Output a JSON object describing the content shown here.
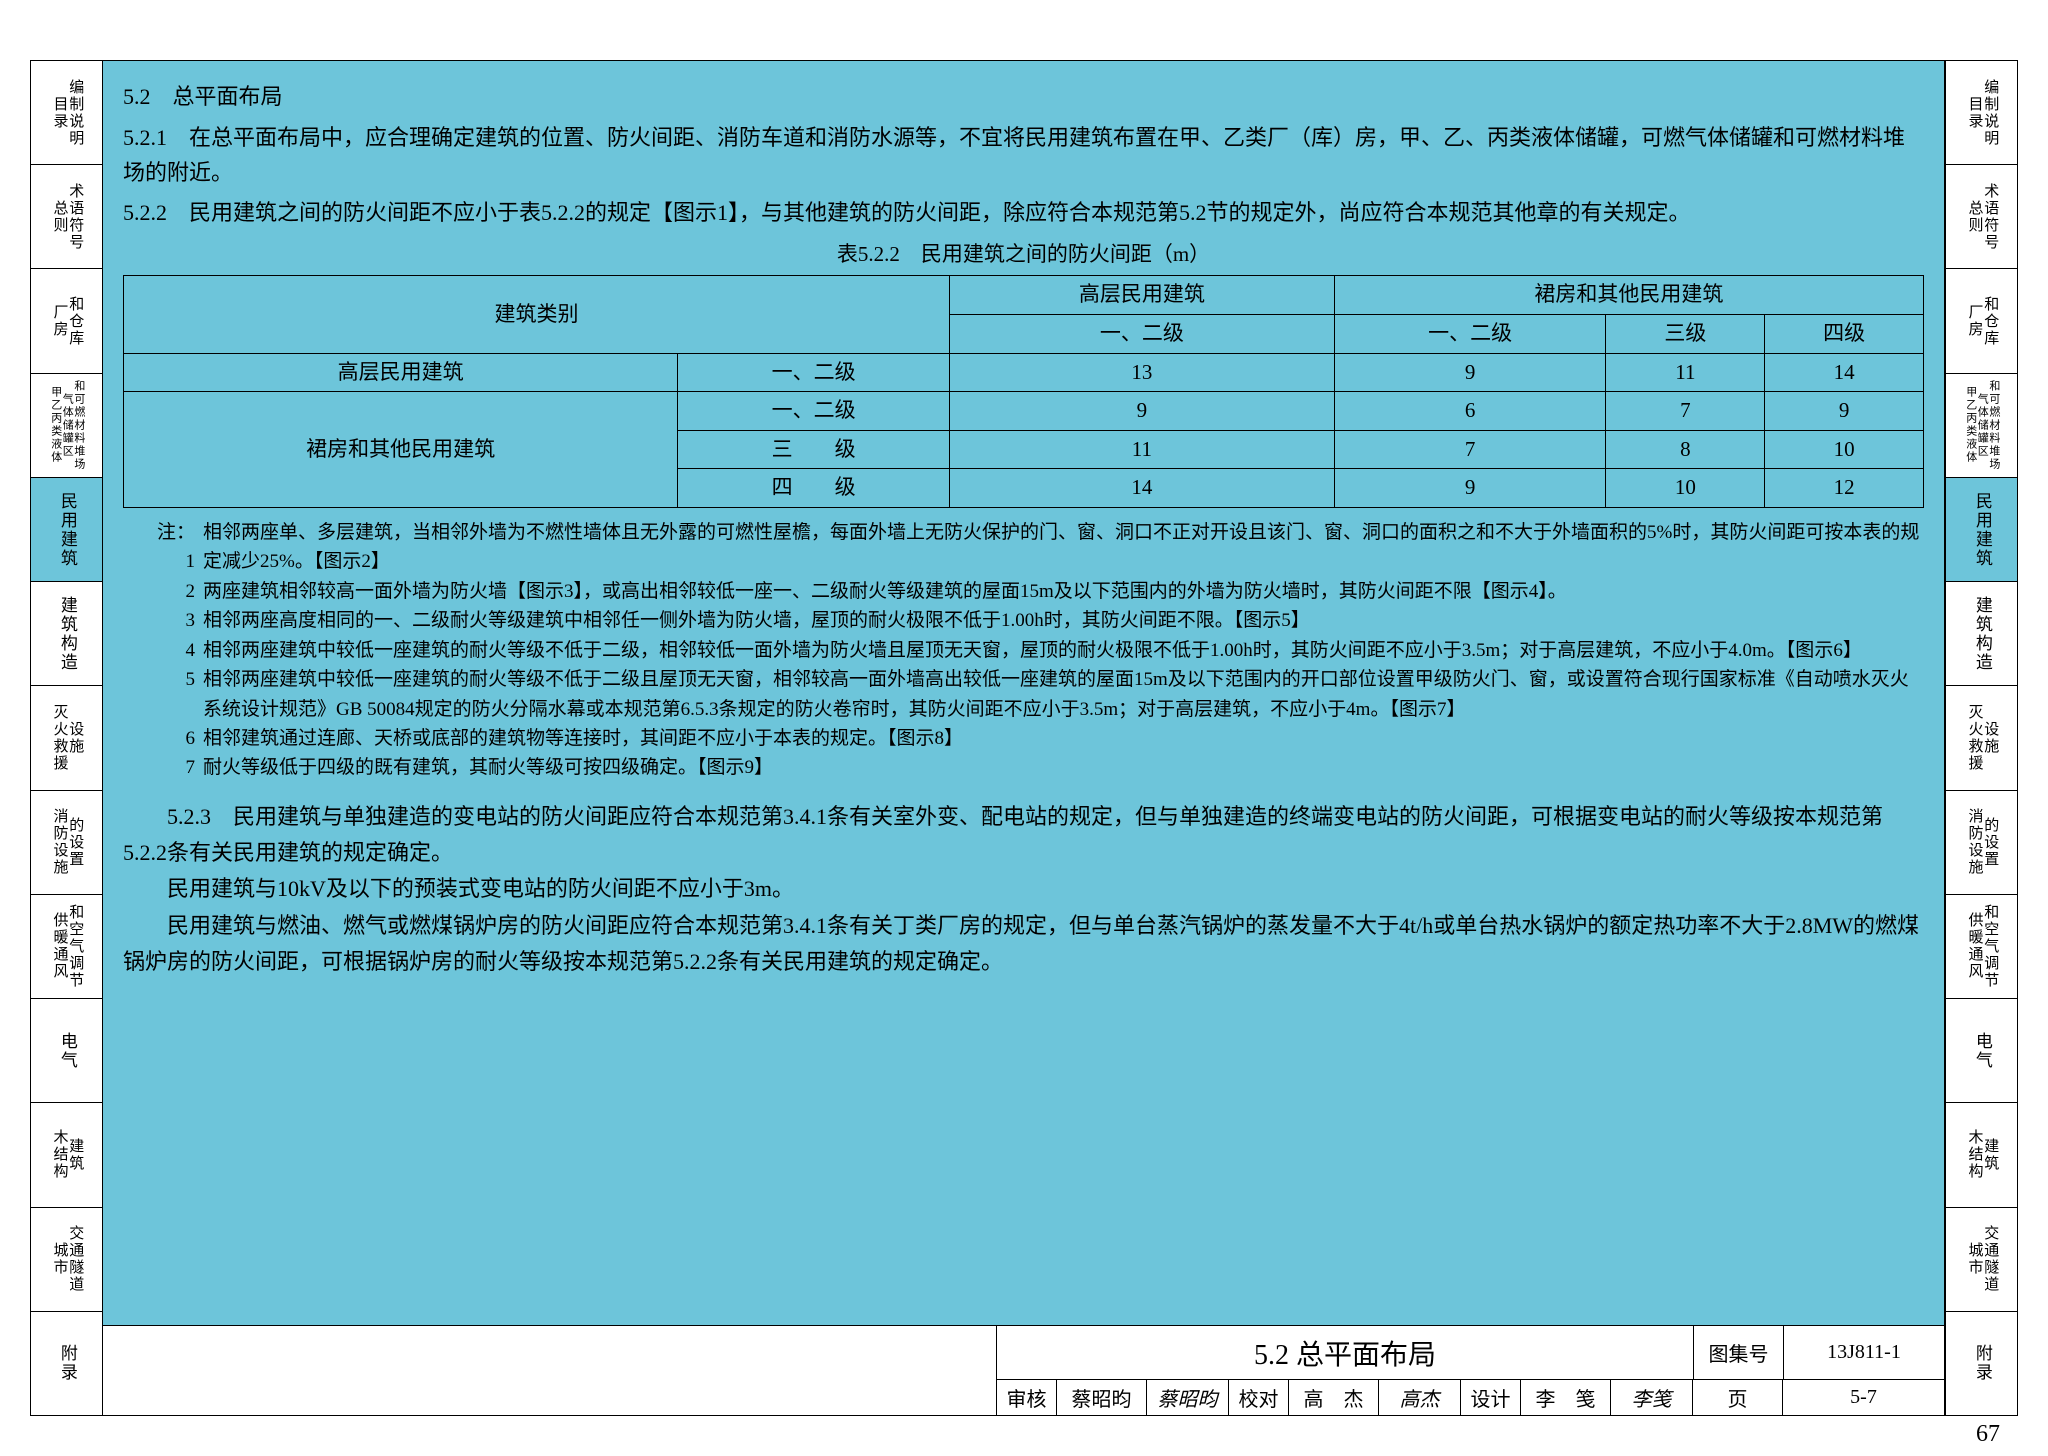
{
  "sidebar": {
    "tabs": [
      {
        "left": "目录",
        "right": "编制说明"
      },
      {
        "left": "总则",
        "right": "术语符号"
      },
      {
        "left": "厂房",
        "right": "和仓库"
      },
      {
        "left": "甲乙丙类液体",
        "right": "和可燃材料堆场",
        "extra": "气体储罐区"
      },
      {
        "left": "民用建筑",
        "right": ""
      },
      {
        "left": "建筑构造",
        "right": ""
      },
      {
        "left": "灭火救援",
        "right": "设施"
      },
      {
        "left": "消防设施",
        "right": "的设置"
      },
      {
        "left": "供暖通风",
        "right": "和空气调节"
      },
      {
        "left": "电气",
        "right": ""
      },
      {
        "left": "木结构",
        "right": "建筑"
      },
      {
        "left": "城市",
        "right": "交通隧道"
      },
      {
        "left": "附录",
        "right": ""
      }
    ],
    "active_index": 4
  },
  "content": {
    "title": "5.2　总平面布局",
    "p521": "5.2.1　在总平面布局中，应合理确定建筑的位置、防火间距、消防车道和消防水源等，不宜将民用建筑布置在甲、乙类厂（库）房，甲、乙、丙类液体储罐，可燃气体储罐和可燃材料堆场的附近。",
    "p522": "5.2.2　民用建筑之间的防火间距不应小于表5.2.2的规定【图示1】，与其他建筑的防火间距，除应符合本规范第5.2节的规定外，尚应符合本规范其他章的有关规定。",
    "table_title": "表5.2.2　民用建筑之间的防火间距（m）",
    "table": {
      "header1": [
        "建筑类别",
        "高层民用建筑",
        "裙房和其他民用建筑"
      ],
      "header2": [
        "一、二级",
        "一、二级",
        "三级",
        "四级"
      ],
      "rows": [
        {
          "cat1": "高层民用建筑",
          "cat2": "一、二级",
          "v": [
            "13",
            "9",
            "11",
            "14"
          ]
        },
        {
          "cat1": "",
          "cat2": "一、二级",
          "v": [
            "9",
            "6",
            "7",
            "9"
          ]
        },
        {
          "cat1": "裙房和其他民用建筑",
          "cat2": "三　　级",
          "v": [
            "11",
            "7",
            "8",
            "10"
          ]
        },
        {
          "cat1": "",
          "cat2": "四　　级",
          "v": [
            "14",
            "9",
            "10",
            "12"
          ]
        }
      ]
    },
    "notes_label": "注：",
    "notes": [
      "相邻两座单、多层建筑，当相邻外墙为不燃性墙体且无外露的可燃性屋檐，每面外墙上无防火保护的门、窗、洞口不正对开设且该门、窗、洞口的面积之和不大于外墙面积的5%时，其防火间距可按本表的规定减少25%。【图示2】",
      "两座建筑相邻较高一面外墙为防火墙【图示3】，或高出相邻较低一座一、二级耐火等级建筑的屋面15m及以下范围内的外墙为防火墙时，其防火间距不限【图示4】。",
      "相邻两座高度相同的一、二级耐火等级建筑中相邻任一侧外墙为防火墙，屋顶的耐火极限不低于1.00h时，其防火间距不限。【图示5】",
      "相邻两座建筑中较低一座建筑的耐火等级不低于二级，相邻较低一面外墙为防火墙且屋顶无天窗，屋顶的耐火极限不低于1.00h时，其防火间距不应小于3.5m；对于高层建筑，不应小于4.0m。【图示6】",
      "相邻两座建筑中较低一座建筑的耐火等级不低于二级且屋顶无天窗，相邻较高一面外墙高出较低一座建筑的屋面15m及以下范围内的开口部位设置甲级防火门、窗，或设置符合现行国家标准《自动喷水灭火系统设计规范》GB 50084规定的防火分隔水幕或本规范第6.5.3条规定的防火卷帘时，其防火间距不应小于3.5m；对于高层建筑，不应小于4m。【图示7】",
      "相邻建筑通过连廊、天桥或底部的建筑物等连接时，其间距不应小于本表的规定。【图示8】",
      "耐火等级低于四级的既有建筑，其耐火等级可按四级确定。【图示9】"
    ],
    "p523a": "5.2.3　民用建筑与单独建造的变电站的防火间距应符合本规范第3.4.1条有关室外变、配电站的规定，但与单独建造的终端变电站的防火间距，可根据变电站的耐火等级按本规范第5.2.2条有关民用建筑的规定确定。",
    "p523b": "民用建筑与10kV及以下的预装式变电站的防火间距不应小于3m。",
    "p523c": "民用建筑与燃油、燃气或燃煤锅炉房的防火间距应符合本规范第3.4.1条有关丁类厂房的规定，但与单台蒸汽锅炉的蒸发量不大于4t/h或单台热水锅炉的额定热功率不大于2.8MW的燃煤锅炉房的防火间距，可根据锅炉房的耐火等级按本规范第5.2.2条有关民用建筑的规定确定。"
  },
  "footer": {
    "main_title": "5.2 总平面布局",
    "atlas_label": "图集号",
    "atlas_value": "13J811-1",
    "page_label": "页",
    "page_value": "5-7",
    "cells": [
      {
        "label": "审核",
        "name": "蔡昭昀",
        "sig": "蔡昭昀"
      },
      {
        "label": "校对",
        "name": "高　杰",
        "sig": "高杰"
      },
      {
        "label": "设计",
        "name": "李　笺",
        "sig": "李笺"
      }
    ]
  },
  "page_number": "67"
}
